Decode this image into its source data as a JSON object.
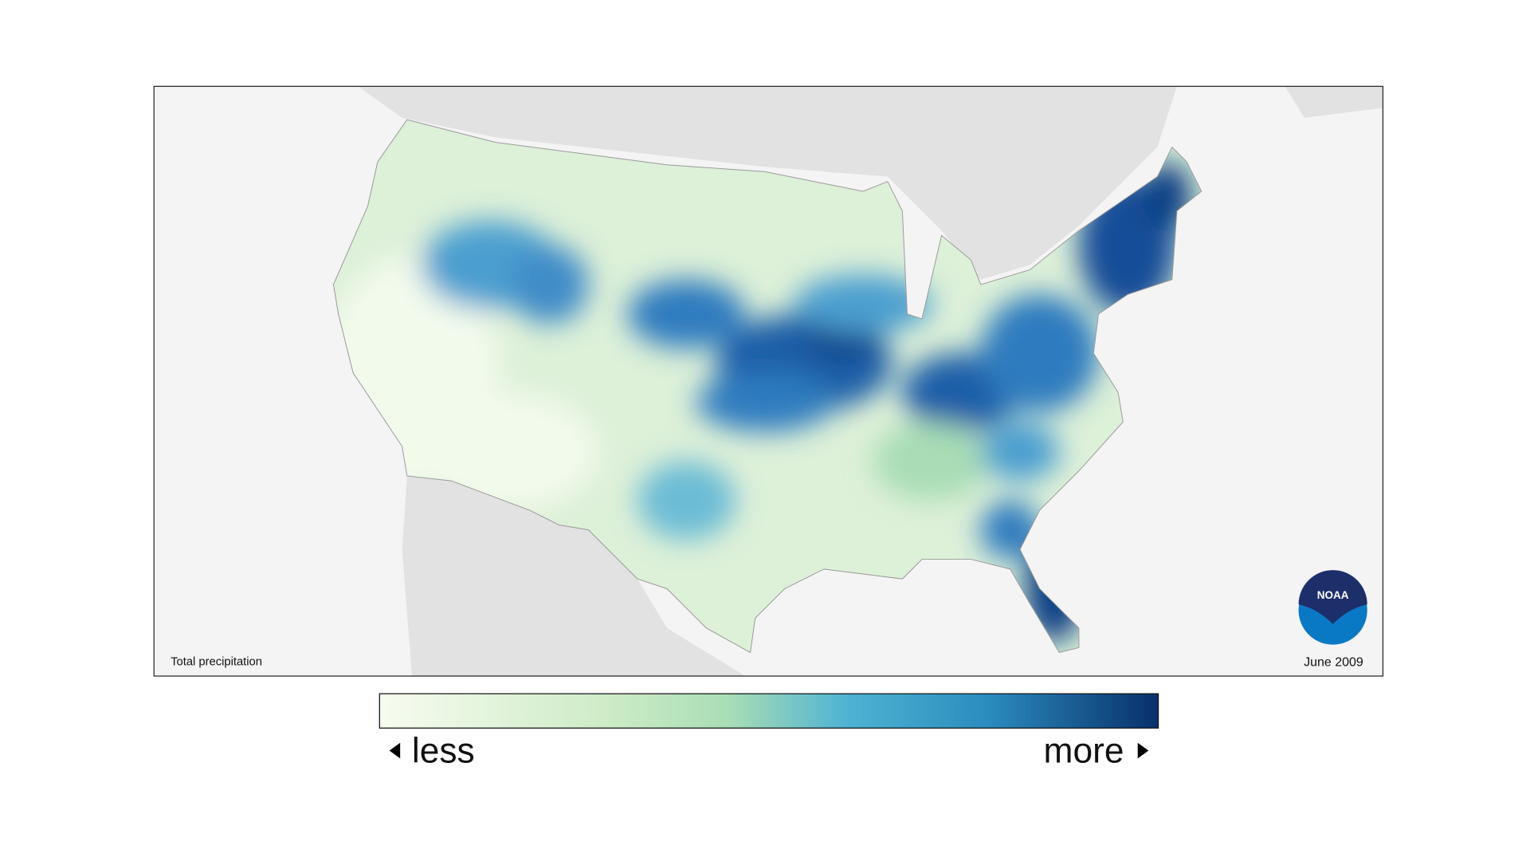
{
  "map": {
    "caption": "Total precipitation",
    "date": "June 2009"
  },
  "logo": {
    "text": "NOAA"
  },
  "legend": {
    "low_label": "less",
    "high_label": "more"
  }
}
